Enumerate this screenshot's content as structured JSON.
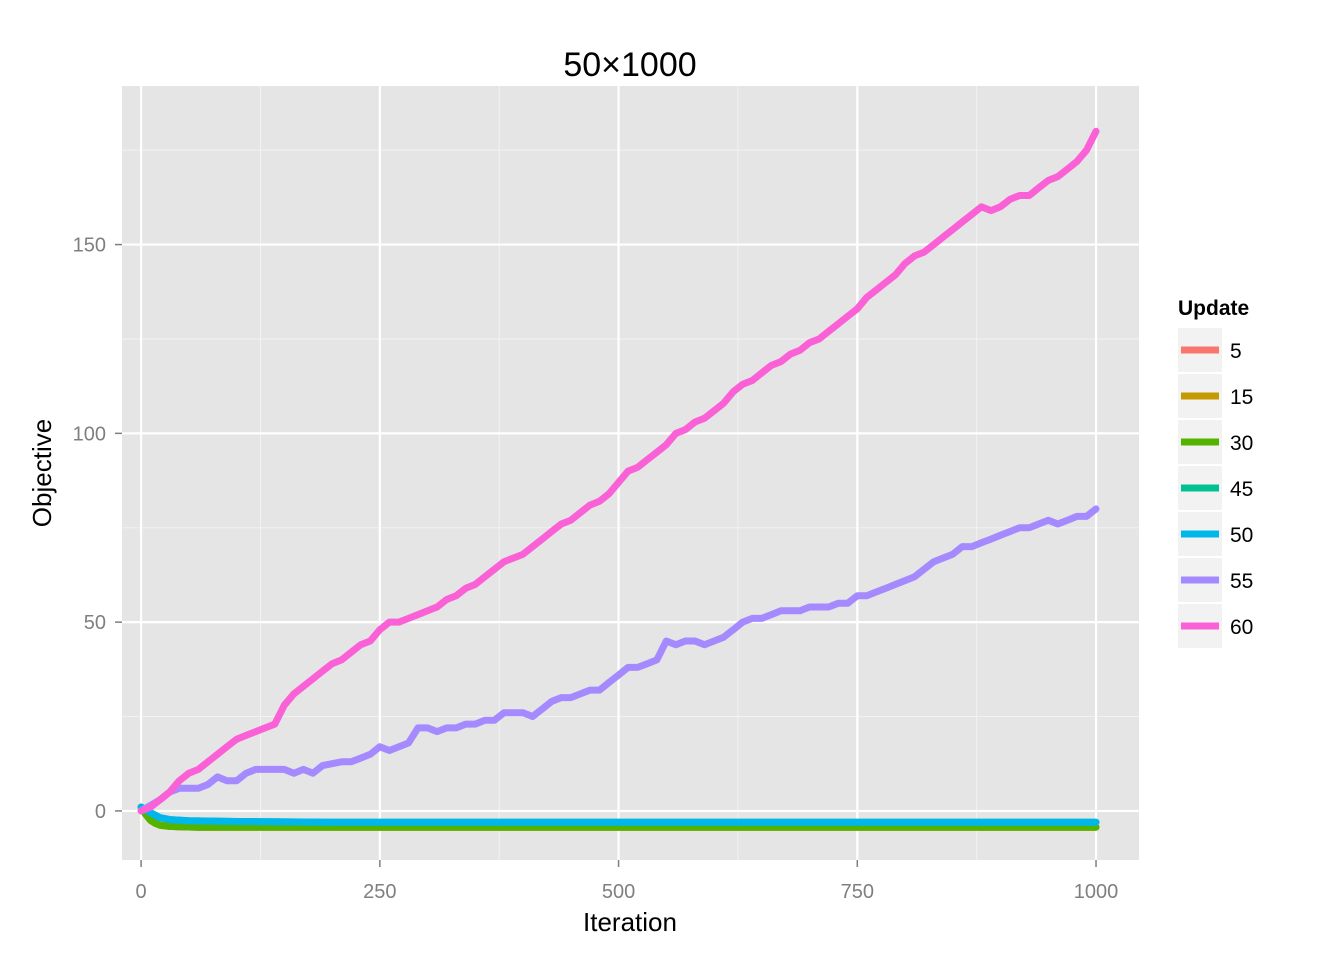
{
  "chart_data": {
    "type": "line",
    "title": "50×1000",
    "xlabel": "Iteration",
    "ylabel": "Objective",
    "xlim": [
      -20,
      1045
    ],
    "ylim": [
      -13,
      192
    ],
    "x_ticks": [
      0,
      250,
      500,
      750,
      1000
    ],
    "x_tick_labels": [
      "0",
      "250",
      "500",
      "750",
      "1000"
    ],
    "y_ticks": [
      0,
      50,
      100,
      150
    ],
    "y_tick_labels": [
      "0",
      "50",
      "100",
      "150"
    ],
    "grid": true,
    "legend": {
      "title": "Update",
      "position": "right"
    },
    "series": [
      {
        "name": "5",
        "color": "#F8766D",
        "x": [
          0,
          5,
          10,
          15,
          20,
          30,
          40,
          60,
          100,
          200,
          400,
          600,
          800,
          1000
        ],
        "y": [
          1,
          -1,
          -2.5,
          -3.3,
          -3.8,
          -4.1,
          -4.2,
          -4.3,
          -4.3,
          -4.3,
          -4.3,
          -4.3,
          -4.3,
          -4.3
        ]
      },
      {
        "name": "15",
        "color": "#C49A00",
        "x": [
          0,
          5,
          10,
          15,
          20,
          30,
          40,
          60,
          100,
          200,
          400,
          600,
          800,
          1000
        ],
        "y": [
          1,
          -1,
          -2.5,
          -3.3,
          -3.8,
          -4.1,
          -4.2,
          -4.3,
          -4.3,
          -4.3,
          -4.3,
          -4.3,
          -4.3,
          -4.3
        ]
      },
      {
        "name": "30",
        "color": "#53B400",
        "x": [
          0,
          5,
          10,
          15,
          20,
          30,
          40,
          60,
          100,
          200,
          400,
          600,
          800,
          1000
        ],
        "y": [
          1,
          -1,
          -2.5,
          -3.3,
          -3.8,
          -4.1,
          -4.2,
          -4.3,
          -4.3,
          -4.3,
          -4.3,
          -4.3,
          -4.3,
          -4.3
        ]
      },
      {
        "name": "45",
        "color": "#00C094",
        "x": [
          0,
          10,
          20,
          30,
          50,
          100,
          200,
          400,
          600,
          800,
          1000
        ],
        "y": [
          1,
          -0.5,
          -1.8,
          -2.3,
          -2.6,
          -2.8,
          -3.0,
          -3.0,
          -3.0,
          -3.0,
          -3.0
        ]
      },
      {
        "name": "50",
        "color": "#00B6EB",
        "x": [
          0,
          10,
          20,
          30,
          50,
          100,
          200,
          400,
          600,
          800,
          1000
        ],
        "y": [
          1,
          -0.5,
          -1.8,
          -2.3,
          -2.6,
          -2.8,
          -3.0,
          -3.0,
          -3.0,
          -3.0,
          -3.0
        ]
      },
      {
        "name": "55",
        "color": "#A58AFF",
        "x": [
          0,
          20,
          30,
          40,
          60,
          70,
          80,
          90,
          100,
          110,
          120,
          130,
          150,
          160,
          170,
          180,
          190,
          210,
          220,
          230,
          240,
          250,
          260,
          270,
          280,
          290,
          300,
          310,
          320,
          330,
          340,
          350,
          360,
          370,
          380,
          390,
          400,
          410,
          420,
          430,
          440,
          450,
          460,
          470,
          480,
          490,
          500,
          510,
          520,
          530,
          540,
          550,
          560,
          570,
          580,
          590,
          600,
          610,
          620,
          630,
          640,
          650,
          660,
          670,
          680,
          690,
          700,
          710,
          720,
          730,
          740,
          750,
          760,
          770,
          780,
          790,
          800,
          810,
          820,
          830,
          840,
          850,
          860,
          870,
          880,
          890,
          900,
          910,
          920,
          930,
          940,
          950,
          960,
          970,
          980,
          990,
          1000
        ],
        "y": [
          0,
          3,
          5,
          6,
          6,
          7,
          9,
          8,
          8,
          10,
          11,
          11,
          11,
          10,
          11,
          10,
          12,
          13,
          13,
          14,
          15,
          17,
          16,
          17,
          18,
          22,
          22,
          21,
          22,
          22,
          23,
          23,
          24,
          24,
          26,
          26,
          26,
          25,
          27,
          29,
          30,
          30,
          31,
          32,
          32,
          34,
          36,
          38,
          38,
          39,
          40,
          45,
          44,
          45,
          45,
          44,
          45,
          46,
          48,
          50,
          51,
          51,
          52,
          53,
          53,
          53,
          54,
          54,
          54,
          55,
          55,
          57,
          57,
          58,
          59,
          60,
          61,
          62,
          64,
          66,
          67,
          68,
          70,
          70,
          71,
          72,
          73,
          74,
          75,
          75,
          76,
          77,
          76,
          77,
          78,
          78,
          80
        ]
      },
      {
        "name": "60",
        "color": "#FB61D7",
        "x": [
          0,
          10,
          20,
          30,
          40,
          50,
          60,
          70,
          80,
          90,
          100,
          110,
          120,
          130,
          140,
          150,
          160,
          170,
          180,
          190,
          200,
          210,
          220,
          230,
          240,
          250,
          260,
          270,
          280,
          290,
          300,
          310,
          320,
          330,
          340,
          350,
          360,
          370,
          380,
          390,
          400,
          410,
          420,
          430,
          440,
          450,
          460,
          470,
          480,
          490,
          500,
          510,
          520,
          530,
          540,
          550,
          560,
          570,
          580,
          590,
          600,
          610,
          620,
          630,
          640,
          650,
          660,
          670,
          680,
          690,
          700,
          710,
          720,
          730,
          740,
          750,
          760,
          770,
          780,
          790,
          800,
          810,
          820,
          830,
          840,
          850,
          860,
          870,
          880,
          890,
          900,
          910,
          920,
          930,
          940,
          950,
          960,
          970,
          980,
          990,
          1000
        ],
        "y": [
          0,
          1,
          3,
          5,
          8,
          10,
          11,
          13,
          15,
          17,
          19,
          20,
          21,
          22,
          23,
          28,
          31,
          33,
          35,
          37,
          39,
          40,
          42,
          44,
          45,
          48,
          50,
          50,
          51,
          52,
          53,
          54,
          56,
          57,
          59,
          60,
          62,
          64,
          66,
          67,
          68,
          70,
          72,
          74,
          76,
          77,
          79,
          81,
          82,
          84,
          87,
          90,
          91,
          93,
          95,
          97,
          100,
          101,
          103,
          104,
          106,
          108,
          111,
          113,
          114,
          116,
          118,
          119,
          121,
          122,
          124,
          125,
          127,
          129,
          131,
          133,
          136,
          138,
          140,
          142,
          145,
          147,
          148,
          150,
          152,
          154,
          156,
          158,
          160,
          159,
          160,
          162,
          163,
          163,
          165,
          167,
          168,
          170,
          172,
          175,
          180
        ]
      }
    ]
  }
}
